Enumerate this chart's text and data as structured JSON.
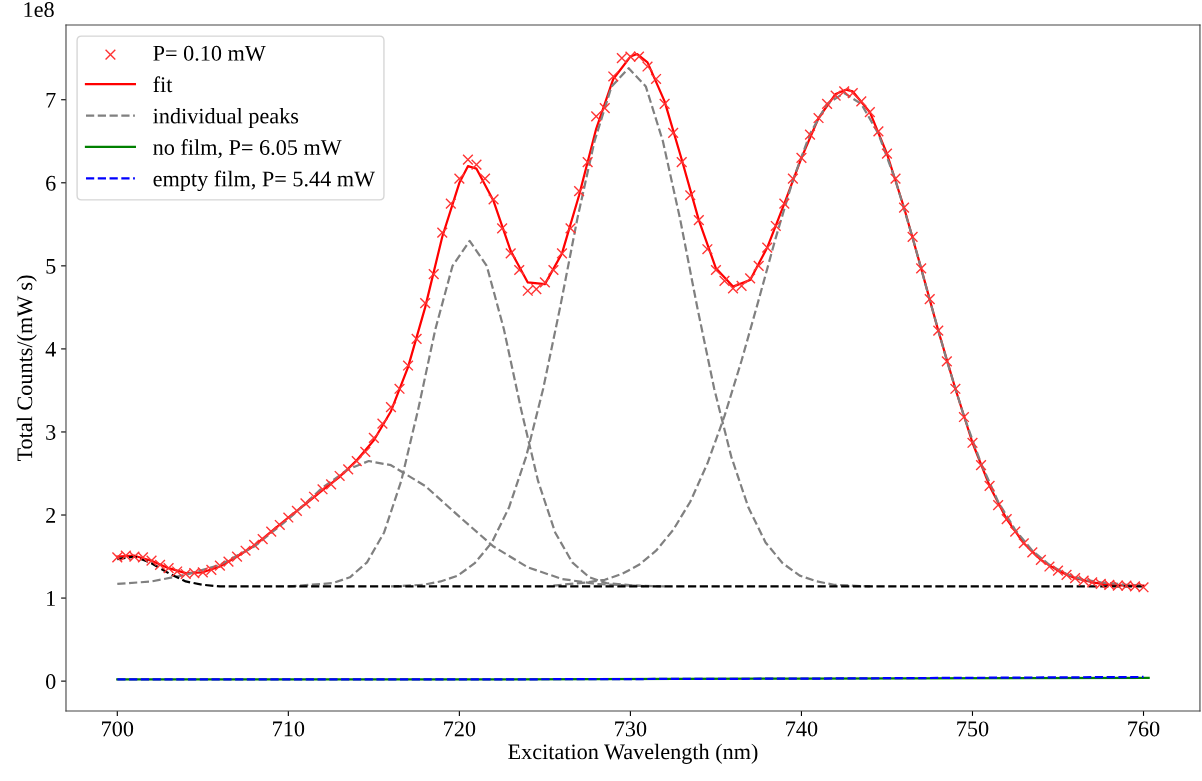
{
  "chart_data": {
    "type": "line",
    "xlabel": "Excitation Wavelength (nm)",
    "ylabel": "Total Counts/(mW s)",
    "annotations": [
      "1e8"
    ],
    "xlim": [
      697.0,
      763.3
    ],
    "ylim": [
      -0.36,
      7.9
    ],
    "xticks": [
      700,
      710,
      720,
      730,
      740,
      750,
      760
    ],
    "yticks": [
      0,
      1,
      2,
      3,
      4,
      5,
      6,
      7
    ],
    "grid": false,
    "legend": "top left",
    "series": [
      {
        "name": "P= 0.10 mW",
        "type": "scatter",
        "marker": "cross",
        "color": "#ff3333",
        "x": [
          700,
          700.5,
          701,
          701.5,
          702,
          702.5,
          703,
          703.5,
          704,
          704.5,
          705,
          705.5,
          706,
          706.5,
          707,
          707.5,
          708,
          708.5,
          709,
          709.5,
          710,
          710.5,
          711,
          711.5,
          712,
          712.5,
          713,
          713.5,
          714,
          714.5,
          715,
          715.5,
          716,
          716.5,
          717,
          717.5,
          718,
          718.5,
          719,
          719.5,
          720,
          720.5,
          721,
          721.5,
          722,
          722.5,
          723,
          723.5,
          724,
          724.5,
          725,
          725.5,
          726,
          726.5,
          727,
          727.5,
          728,
          728.5,
          729,
          729.5,
          730,
          730.5,
          731,
          731.5,
          732,
          732.5,
          733,
          733.5,
          734,
          734.5,
          735,
          735.5,
          736,
          736.5,
          737,
          737.5,
          738,
          738.5,
          739,
          739.5,
          740,
          740.5,
          741,
          741.5,
          742,
          742.5,
          743,
          743.5,
          744,
          744.5,
          745,
          745.5,
          746,
          746.5,
          747,
          747.5,
          748,
          748.5,
          749,
          749.5,
          750,
          750.5,
          751,
          751.5,
          752,
          752.5,
          753,
          753.5,
          754,
          754.5,
          755,
          755.5,
          756,
          756.5,
          757,
          757.5,
          758,
          758.5,
          759,
          759.5,
          760
        ],
        "values": [
          1.49,
          1.51,
          1.5,
          1.49,
          1.45,
          1.4,
          1.36,
          1.32,
          1.29,
          1.3,
          1.31,
          1.34,
          1.39,
          1.44,
          1.5,
          1.57,
          1.64,
          1.71,
          1.8,
          1.88,
          1.97,
          2.05,
          2.14,
          2.22,
          2.31,
          2.37,
          2.47,
          2.55,
          2.65,
          2.76,
          2.93,
          3.1,
          3.3,
          3.52,
          3.8,
          4.12,
          4.55,
          4.9,
          5.4,
          5.75,
          6.05,
          6.28,
          6.22,
          6.05,
          5.8,
          5.45,
          5.15,
          4.95,
          4.7,
          4.72,
          4.8,
          4.95,
          5.15,
          5.45,
          5.9,
          6.25,
          6.8,
          6.9,
          7.28,
          7.5,
          7.52,
          7.52,
          7.4,
          7.25,
          6.95,
          6.6,
          6.25,
          5.85,
          5.55,
          5.2,
          4.95,
          4.82,
          4.73,
          4.76,
          4.85,
          5.0,
          5.22,
          5.48,
          5.75,
          6.05,
          6.3,
          6.58,
          6.78,
          6.95,
          7.05,
          7.1,
          7.08,
          6.98,
          6.85,
          6.62,
          6.35,
          6.05,
          5.7,
          5.35,
          4.97,
          4.6,
          4.22,
          3.85,
          3.52,
          3.18,
          2.87,
          2.6,
          2.35,
          2.12,
          1.95,
          1.8,
          1.66,
          1.55,
          1.46,
          1.38,
          1.33,
          1.28,
          1.24,
          1.21,
          1.19,
          1.17,
          1.16,
          1.15,
          1.15,
          1.14,
          1.13
        ]
      },
      {
        "name": "fit",
        "line_style": "solid",
        "color": "#ff0000",
        "x": [
          700,
          701,
          702,
          703,
          704,
          705,
          706,
          707,
          708,
          709,
          710,
          711,
          712,
          713,
          714,
          715,
          716,
          717,
          718,
          719,
          720,
          720.5,
          721,
          722,
          723,
          724,
          725,
          726,
          727,
          728,
          729,
          730,
          730.4,
          731,
          732,
          733,
          734,
          735,
          736,
          737,
          738,
          739,
          740,
          741,
          742,
          742.6,
          743,
          744,
          745,
          746,
          747,
          748,
          749,
          750,
          751,
          752,
          753,
          754,
          755,
          756,
          757,
          758,
          759,
          760
        ],
        "values": [
          1.5,
          1.51,
          1.45,
          1.36,
          1.3,
          1.31,
          1.38,
          1.5,
          1.63,
          1.8,
          1.97,
          2.13,
          2.3,
          2.46,
          2.66,
          2.9,
          3.25,
          3.78,
          4.5,
          5.35,
          6.0,
          6.2,
          6.17,
          5.78,
          5.18,
          4.8,
          4.78,
          5.15,
          5.85,
          6.65,
          7.25,
          7.52,
          7.55,
          7.45,
          6.98,
          6.28,
          5.55,
          4.97,
          4.75,
          4.83,
          5.22,
          5.75,
          6.3,
          6.78,
          7.07,
          7.12,
          7.1,
          6.85,
          6.35,
          5.7,
          4.97,
          4.22,
          3.52,
          2.87,
          2.35,
          1.95,
          1.66,
          1.46,
          1.33,
          1.24,
          1.19,
          1.16,
          1.15,
          1.15
        ]
      },
      {
        "name": "individual peaks",
        "line_style": "dashed",
        "color": "#808080",
        "x": [
          700,
          702,
          704,
          706,
          708,
          710,
          712,
          713.5,
          714.7,
          716,
          718,
          720,
          722,
          724,
          726,
          728,
          730,
          732
        ],
        "values": [
          1.17,
          1.2,
          1.28,
          1.4,
          1.62,
          1.95,
          2.33,
          2.55,
          2.65,
          2.6,
          2.35,
          1.98,
          1.62,
          1.37,
          1.23,
          1.17,
          1.15,
          1.14
        ]
      },
      {
        "type": "line",
        "line_style": "dashed",
        "color": "#808080",
        "x": [
          710,
          712.6,
          713.6,
          714.6,
          715.6,
          716.6,
          717.6,
          718.6,
          719.6,
          720.6,
          721.6,
          722.6,
          723.6,
          724.6,
          725.6,
          726.6,
          727.6,
          728.6,
          731
        ],
        "values": [
          1.14,
          1.18,
          1.25,
          1.43,
          1.79,
          2.41,
          3.28,
          4.24,
          5.0,
          5.3,
          5.0,
          4.24,
          3.28,
          2.41,
          1.79,
          1.43,
          1.25,
          1.18,
          1.14
        ]
      },
      {
        "type": "line",
        "line_style": "dashed",
        "color": "#808080",
        "x": [
          716,
          717.9,
          718.9,
          719.9,
          720.9,
          721.9,
          722.9,
          723.9,
          724.9,
          725.9,
          726.9,
          727.9,
          728.9,
          729.9,
          730.9,
          731.9,
          732.9,
          733.9,
          734.9,
          735.9,
          736.9,
          737.9,
          738.9,
          739.9,
          740.9,
          741.9,
          744
        ],
        "values": [
          1.14,
          1.16,
          1.2,
          1.27,
          1.42,
          1.67,
          2.09,
          2.7,
          3.52,
          4.51,
          5.57,
          6.5,
          7.16,
          7.38,
          7.16,
          6.5,
          5.57,
          4.51,
          3.52,
          2.7,
          2.09,
          1.67,
          1.42,
          1.27,
          1.2,
          1.16,
          1.14
        ]
      },
      {
        "type": "line",
        "line_style": "dashed",
        "color": "#808080",
        "x": [
          725.5,
          727.5,
          728.5,
          729.5,
          730.5,
          731.5,
          732.5,
          733.5,
          734.5,
          735.5,
          736.5,
          737.5,
          738.5,
          739.5,
          740.5,
          741.5,
          742.5,
          743.5,
          744.5,
          745.5,
          746.5,
          747.5,
          748.5,
          749.5,
          750.5,
          751.5,
          752.5,
          753.5,
          754.5,
          755.5,
          756.5,
          757.5,
          759,
          760
        ],
        "values": [
          1.15,
          1.19,
          1.22,
          1.29,
          1.4,
          1.57,
          1.82,
          2.16,
          2.62,
          3.19,
          3.86,
          4.59,
          5.34,
          6.03,
          6.59,
          6.95,
          7.08,
          6.95,
          6.59,
          6.03,
          5.34,
          4.59,
          3.86,
          3.19,
          2.62,
          2.16,
          1.82,
          1.57,
          1.4,
          1.29,
          1.22,
          1.19,
          1.16,
          1.15
        ]
      },
      {
        "type": "line",
        "line_style": "dashed",
        "color": "#000000",
        "x": [
          700,
          701,
          702,
          703,
          704,
          705,
          706,
          760
        ],
        "values": [
          1.47,
          1.5,
          1.42,
          1.3,
          1.2,
          1.16,
          1.14,
          1.14
        ]
      },
      {
        "name": "no film, P= 6.05 mW",
        "line_style": "solid",
        "color": "#008000",
        "x": [
          700,
          720,
          740,
          760.3
        ],
        "values": [
          0.02,
          0.02,
          0.03,
          0.04
        ]
      },
      {
        "name": "empty film, P= 5.44 mW",
        "line_style": "dashed",
        "color": "#0000ff",
        "x": [
          700,
          720,
          740,
          760
        ],
        "values": [
          0.02,
          0.02,
          0.03,
          0.05
        ]
      }
    ]
  }
}
